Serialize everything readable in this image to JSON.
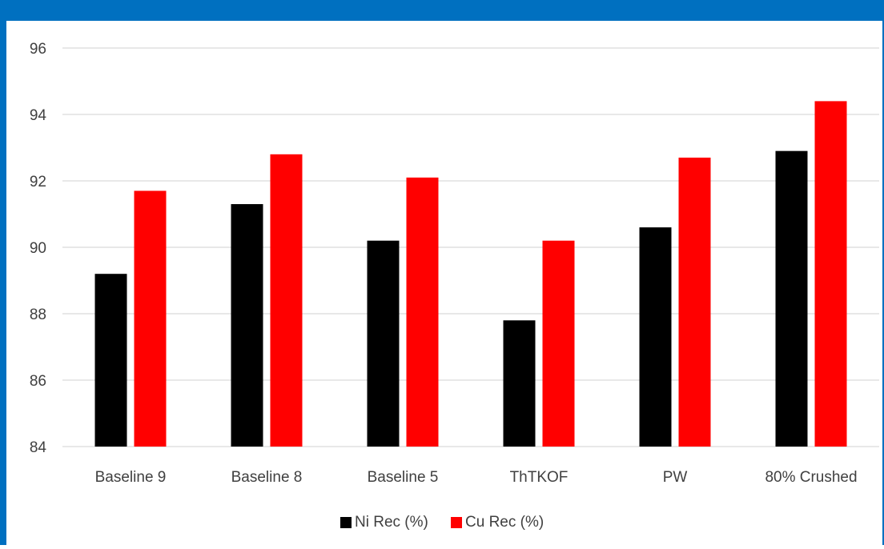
{
  "colors": {
    "frame": "#0070c0",
    "gridline": "#d9d9d9",
    "text": "#404040"
  },
  "chart_data": {
    "type": "bar",
    "title": "",
    "xlabel": "",
    "ylabel": "",
    "categories": [
      "Baseline 9",
      "Baseline 8",
      "Baseline 5",
      "ThTKOF",
      "PW",
      "80% Crushed"
    ],
    "series": [
      {
        "name": "Ni Rec (%)",
        "color": "#000000",
        "values": [
          89.2,
          91.3,
          90.2,
          87.8,
          90.6,
          92.9
        ]
      },
      {
        "name": "Cu Rec (%)",
        "color": "#ff0000",
        "values": [
          91.7,
          92.8,
          92.1,
          90.2,
          92.7,
          94.4
        ]
      }
    ],
    "ylim": [
      84,
      96
    ],
    "yticks": [
      84,
      86,
      88,
      90,
      92,
      94,
      96
    ],
    "grid": true,
    "legend_position": "bottom"
  }
}
